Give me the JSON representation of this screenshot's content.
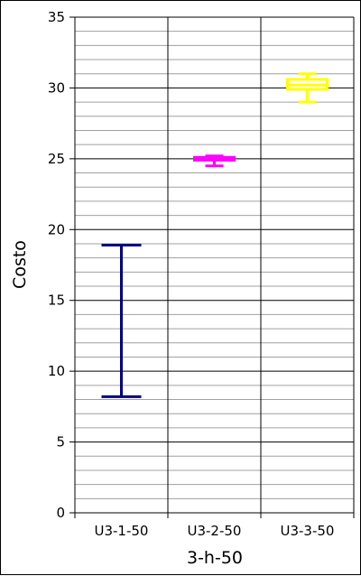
{
  "chart_data": {
    "type": "boxplot",
    "xlabel": "3-h-50",
    "ylabel": "Costo",
    "ylim": [
      0,
      35
    ],
    "yticks": [
      0,
      5,
      10,
      15,
      20,
      25,
      30,
      35
    ],
    "y_minor_step": 1,
    "grid": true,
    "categories": [
      "U3-1-50",
      "U3-2-50",
      "U3-3-50"
    ],
    "series": [
      {
        "category": "U3-1-50",
        "color": "#000080",
        "min": 8.2,
        "q1": 8.2,
        "median": 8.2,
        "q3": 8.2,
        "max": 18.9
      },
      {
        "category": "U3-2-50",
        "color": "#ff00ff",
        "min": 24.5,
        "q1": 24.9,
        "median": 25.0,
        "q3": 25.1,
        "max": 25.2
      },
      {
        "category": "U3-3-50",
        "color": "#ffff00",
        "min": 29.0,
        "q1": 29.9,
        "median": 30.2,
        "q3": 30.6,
        "max": 31.0
      }
    ]
  }
}
